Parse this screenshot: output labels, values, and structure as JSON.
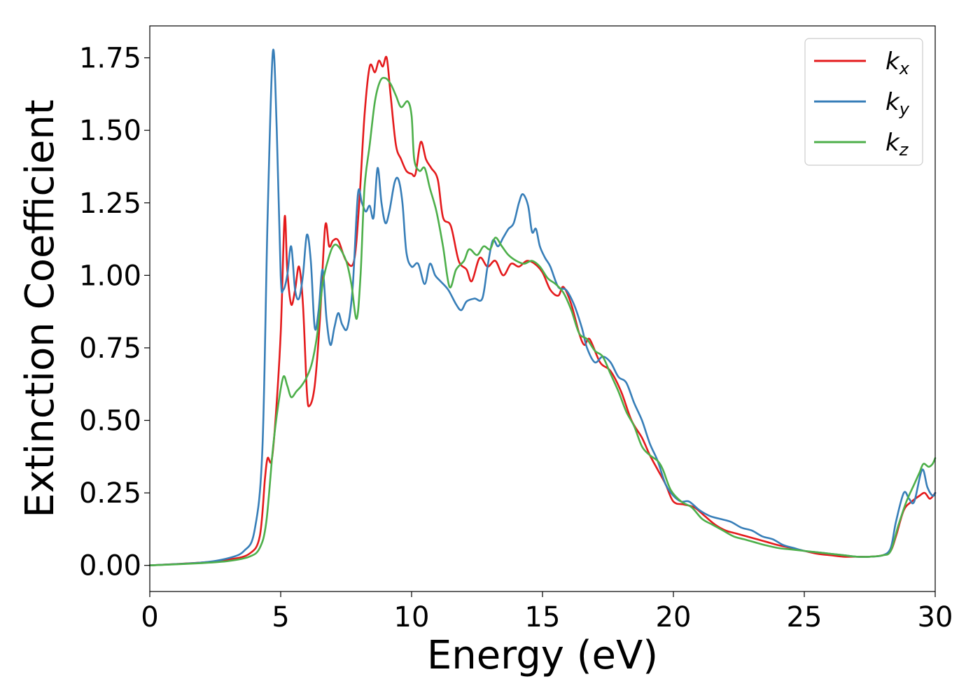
{
  "chart_data": {
    "type": "line",
    "xlabel": "Energy (eV)",
    "ylabel": "Extinction Coefficient",
    "xlim": [
      0,
      30
    ],
    "ylim": [
      -0.09,
      1.86
    ],
    "x_ticks": [
      "0",
      "5",
      "10",
      "15",
      "20",
      "25",
      "30"
    ],
    "y_ticks": [
      "0.00",
      "0.25",
      "0.50",
      "0.75",
      "1.00",
      "1.25",
      "1.50",
      "1.75"
    ],
    "x_tick_values": [
      0,
      5,
      10,
      15,
      20,
      25,
      30
    ],
    "y_tick_values": [
      0,
      0.25,
      0.5,
      0.75,
      1.0,
      1.25,
      1.5,
      1.75
    ],
    "grid": false,
    "legend_position": "top-right",
    "series": [
      {
        "name": "k",
        "subscript": "x",
        "color": "#e41a1c",
        "points": [
          [
            0,
            0
          ],
          [
            2,
            0.01
          ],
          [
            3,
            0.02
          ],
          [
            3.8,
            0.04
          ],
          [
            4.2,
            0.1
          ],
          [
            4.4,
            0.3
          ],
          [
            4.5,
            0.37
          ],
          [
            4.65,
            0.36
          ],
          [
            4.8,
            0.5
          ],
          [
            5.0,
            0.8
          ],
          [
            5.15,
            1.2
          ],
          [
            5.25,
            1.02
          ],
          [
            5.4,
            0.9
          ],
          [
            5.55,
            0.95
          ],
          [
            5.7,
            1.03
          ],
          [
            5.85,
            0.9
          ],
          [
            6.0,
            0.6
          ],
          [
            6.1,
            0.55
          ],
          [
            6.3,
            0.62
          ],
          [
            6.5,
            0.85
          ],
          [
            6.7,
            1.17
          ],
          [
            6.85,
            1.1
          ],
          [
            7.0,
            1.12
          ],
          [
            7.2,
            1.12
          ],
          [
            7.5,
            1.05
          ],
          [
            7.8,
            1.05
          ],
          [
            8.0,
            1.25
          ],
          [
            8.2,
            1.55
          ],
          [
            8.4,
            1.72
          ],
          [
            8.6,
            1.7
          ],
          [
            8.75,
            1.74
          ],
          [
            8.9,
            1.72
          ],
          [
            9.05,
            1.75
          ],
          [
            9.2,
            1.62
          ],
          [
            9.4,
            1.45
          ],
          [
            9.6,
            1.4
          ],
          [
            9.8,
            1.36
          ],
          [
            10.0,
            1.35
          ],
          [
            10.15,
            1.35
          ],
          [
            10.35,
            1.46
          ],
          [
            10.55,
            1.4
          ],
          [
            10.75,
            1.37
          ],
          [
            11.0,
            1.33
          ],
          [
            11.2,
            1.2
          ],
          [
            11.5,
            1.17
          ],
          [
            11.8,
            1.05
          ],
          [
            12.1,
            1.02
          ],
          [
            12.3,
            0.98
          ],
          [
            12.6,
            1.06
          ],
          [
            12.9,
            1.03
          ],
          [
            13.2,
            1.05
          ],
          [
            13.5,
            1.0
          ],
          [
            13.8,
            1.04
          ],
          [
            14.1,
            1.03
          ],
          [
            14.4,
            1.05
          ],
          [
            14.7,
            1.04
          ],
          [
            15.0,
            1.01
          ],
          [
            15.3,
            0.95
          ],
          [
            15.6,
            0.93
          ],
          [
            15.8,
            0.96
          ],
          [
            16.1,
            0.9
          ],
          [
            16.4,
            0.8
          ],
          [
            16.6,
            0.76
          ],
          [
            16.8,
            0.78
          ],
          [
            17.2,
            0.7
          ],
          [
            17.6,
            0.67
          ],
          [
            18.0,
            0.6
          ],
          [
            18.4,
            0.5
          ],
          [
            18.8,
            0.44
          ],
          [
            19.1,
            0.38
          ],
          [
            19.4,
            0.33
          ],
          [
            19.7,
            0.28
          ],
          [
            20.0,
            0.22
          ],
          [
            20.4,
            0.21
          ],
          [
            20.8,
            0.2
          ],
          [
            21.2,
            0.17
          ],
          [
            21.6,
            0.14
          ],
          [
            22.0,
            0.12
          ],
          [
            22.4,
            0.11
          ],
          [
            22.8,
            0.1
          ],
          [
            23.2,
            0.09
          ],
          [
            23.6,
            0.08
          ],
          [
            24.0,
            0.07
          ],
          [
            24.5,
            0.06
          ],
          [
            25.0,
            0.05
          ],
          [
            25.5,
            0.04
          ],
          [
            26.0,
            0.035
          ],
          [
            26.5,
            0.03
          ],
          [
            27.0,
            0.03
          ],
          [
            27.5,
            0.03
          ],
          [
            28.0,
            0.035
          ],
          [
            28.3,
            0.05
          ],
          [
            28.5,
            0.1
          ],
          [
            28.8,
            0.19
          ],
          [
            29.1,
            0.22
          ],
          [
            29.4,
            0.24
          ],
          [
            29.6,
            0.25
          ],
          [
            29.8,
            0.23
          ],
          [
            30.0,
            0.25
          ]
        ]
      },
      {
        "name": "k",
        "subscript": "y",
        "color": "#377eb8",
        "points": [
          [
            0,
            0
          ],
          [
            2,
            0.01
          ],
          [
            3,
            0.025
          ],
          [
            3.6,
            0.05
          ],
          [
            4.0,
            0.12
          ],
          [
            4.3,
            0.4
          ],
          [
            4.5,
            1.2
          ],
          [
            4.7,
            1.77
          ],
          [
            4.85,
            1.5
          ],
          [
            5.0,
            1.0
          ],
          [
            5.1,
            0.95
          ],
          [
            5.25,
            1.0
          ],
          [
            5.4,
            1.1
          ],
          [
            5.55,
            0.95
          ],
          [
            5.7,
            0.92
          ],
          [
            5.85,
            1.0
          ],
          [
            6.0,
            1.14
          ],
          [
            6.15,
            1.05
          ],
          [
            6.3,
            0.82
          ],
          [
            6.45,
            0.88
          ],
          [
            6.6,
            1.02
          ],
          [
            6.75,
            0.85
          ],
          [
            6.9,
            0.76
          ],
          [
            7.05,
            0.82
          ],
          [
            7.2,
            0.87
          ],
          [
            7.35,
            0.83
          ],
          [
            7.55,
            0.82
          ],
          [
            7.75,
            0.96
          ],
          [
            7.95,
            1.28
          ],
          [
            8.1,
            1.25
          ],
          [
            8.25,
            1.22
          ],
          [
            8.4,
            1.24
          ],
          [
            8.55,
            1.2
          ],
          [
            8.7,
            1.37
          ],
          [
            8.85,
            1.25
          ],
          [
            9.0,
            1.18
          ],
          [
            9.15,
            1.22
          ],
          [
            9.35,
            1.32
          ],
          [
            9.5,
            1.33
          ],
          [
            9.65,
            1.25
          ],
          [
            9.8,
            1.08
          ],
          [
            10.0,
            1.03
          ],
          [
            10.25,
            1.04
          ],
          [
            10.5,
            0.97
          ],
          [
            10.7,
            1.04
          ],
          [
            10.9,
            1.0
          ],
          [
            11.1,
            0.98
          ],
          [
            11.4,
            0.95
          ],
          [
            11.7,
            0.9
          ],
          [
            11.9,
            0.88
          ],
          [
            12.1,
            0.91
          ],
          [
            12.4,
            0.92
          ],
          [
            12.7,
            0.92
          ],
          [
            12.9,
            1.03
          ],
          [
            13.1,
            1.12
          ],
          [
            13.3,
            1.1
          ],
          [
            13.5,
            1.13
          ],
          [
            13.7,
            1.16
          ],
          [
            13.9,
            1.18
          ],
          [
            14.1,
            1.25
          ],
          [
            14.25,
            1.28
          ],
          [
            14.45,
            1.24
          ],
          [
            14.6,
            1.15
          ],
          [
            14.75,
            1.16
          ],
          [
            14.9,
            1.1
          ],
          [
            15.1,
            1.06
          ],
          [
            15.3,
            1.03
          ],
          [
            15.6,
            0.96
          ],
          [
            15.9,
            0.95
          ],
          [
            16.2,
            0.9
          ],
          [
            16.5,
            0.82
          ],
          [
            16.7,
            0.75
          ],
          [
            17.0,
            0.7
          ],
          [
            17.3,
            0.72
          ],
          [
            17.6,
            0.7
          ],
          [
            17.9,
            0.65
          ],
          [
            18.2,
            0.63
          ],
          [
            18.5,
            0.56
          ],
          [
            18.8,
            0.5
          ],
          [
            19.1,
            0.42
          ],
          [
            19.4,
            0.36
          ],
          [
            19.7,
            0.28
          ],
          [
            20.0,
            0.24
          ],
          [
            20.3,
            0.22
          ],
          [
            20.6,
            0.22
          ],
          [
            21.0,
            0.19
          ],
          [
            21.4,
            0.17
          ],
          [
            21.8,
            0.16
          ],
          [
            22.2,
            0.15
          ],
          [
            22.6,
            0.13
          ],
          [
            23.0,
            0.12
          ],
          [
            23.4,
            0.1
          ],
          [
            23.8,
            0.09
          ],
          [
            24.2,
            0.07
          ],
          [
            24.6,
            0.06
          ],
          [
            25.0,
            0.05
          ],
          [
            25.5,
            0.045
          ],
          [
            26.0,
            0.04
          ],
          [
            26.5,
            0.035
          ],
          [
            27.0,
            0.03
          ],
          [
            27.5,
            0.03
          ],
          [
            28.0,
            0.035
          ],
          [
            28.3,
            0.06
          ],
          [
            28.5,
            0.15
          ],
          [
            28.8,
            0.25
          ],
          [
            29.0,
            0.23
          ],
          [
            29.2,
            0.22
          ],
          [
            29.5,
            0.33
          ],
          [
            29.7,
            0.27
          ],
          [
            29.9,
            0.24
          ],
          [
            30.0,
            0.25
          ]
        ]
      },
      {
        "name": "k",
        "subscript": "z",
        "color": "#4daf4a",
        "points": [
          [
            0,
            0
          ],
          [
            2,
            0.008
          ],
          [
            3,
            0.015
          ],
          [
            3.8,
            0.03
          ],
          [
            4.2,
            0.06
          ],
          [
            4.45,
            0.15
          ],
          [
            4.7,
            0.4
          ],
          [
            4.9,
            0.55
          ],
          [
            5.1,
            0.65
          ],
          [
            5.25,
            0.62
          ],
          [
            5.4,
            0.58
          ],
          [
            5.6,
            0.6
          ],
          [
            5.8,
            0.62
          ],
          [
            6.0,
            0.65
          ],
          [
            6.2,
            0.7
          ],
          [
            6.4,
            0.8
          ],
          [
            6.6,
            0.97
          ],
          [
            6.8,
            1.05
          ],
          [
            7.0,
            1.1
          ],
          [
            7.2,
            1.1
          ],
          [
            7.5,
            1.05
          ],
          [
            7.7,
            0.97
          ],
          [
            7.9,
            0.85
          ],
          [
            8.05,
            1.0
          ],
          [
            8.2,
            1.3
          ],
          [
            8.4,
            1.45
          ],
          [
            8.6,
            1.6
          ],
          [
            8.8,
            1.67
          ],
          [
            9.0,
            1.68
          ],
          [
            9.2,
            1.66
          ],
          [
            9.4,
            1.62
          ],
          [
            9.6,
            1.58
          ],
          [
            9.85,
            1.6
          ],
          [
            10.0,
            1.55
          ],
          [
            10.1,
            1.4
          ],
          [
            10.3,
            1.36
          ],
          [
            10.5,
            1.37
          ],
          [
            10.7,
            1.3
          ],
          [
            10.95,
            1.22
          ],
          [
            11.2,
            1.1
          ],
          [
            11.45,
            0.96
          ],
          [
            11.7,
            1.02
          ],
          [
            12.0,
            1.05
          ],
          [
            12.2,
            1.09
          ],
          [
            12.5,
            1.07
          ],
          [
            12.75,
            1.1
          ],
          [
            13.0,
            1.09
          ],
          [
            13.2,
            1.13
          ],
          [
            13.45,
            1.1
          ],
          [
            13.7,
            1.07
          ],
          [
            14.0,
            1.05
          ],
          [
            14.3,
            1.04
          ],
          [
            14.6,
            1.05
          ],
          [
            14.9,
            1.03
          ],
          [
            15.2,
            0.99
          ],
          [
            15.5,
            0.97
          ],
          [
            15.8,
            0.94
          ],
          [
            16.1,
            0.88
          ],
          [
            16.4,
            0.8
          ],
          [
            16.7,
            0.78
          ],
          [
            17.0,
            0.74
          ],
          [
            17.3,
            0.72
          ],
          [
            17.6,
            0.66
          ],
          [
            17.9,
            0.6
          ],
          [
            18.2,
            0.53
          ],
          [
            18.5,
            0.48
          ],
          [
            18.8,
            0.41
          ],
          [
            19.1,
            0.38
          ],
          [
            19.4,
            0.36
          ],
          [
            19.6,
            0.33
          ],
          [
            19.9,
            0.26
          ],
          [
            20.3,
            0.22
          ],
          [
            20.7,
            0.2
          ],
          [
            21.1,
            0.16
          ],
          [
            21.5,
            0.14
          ],
          [
            21.9,
            0.12
          ],
          [
            22.3,
            0.1
          ],
          [
            22.7,
            0.09
          ],
          [
            23.1,
            0.08
          ],
          [
            23.5,
            0.07
          ],
          [
            24.0,
            0.06
          ],
          [
            24.5,
            0.055
          ],
          [
            25.0,
            0.05
          ],
          [
            25.5,
            0.045
          ],
          [
            26.0,
            0.04
          ],
          [
            26.5,
            0.035
          ],
          [
            27.0,
            0.03
          ],
          [
            27.5,
            0.03
          ],
          [
            28.0,
            0.035
          ],
          [
            28.3,
            0.05
          ],
          [
            28.6,
            0.14
          ],
          [
            28.9,
            0.22
          ],
          [
            29.2,
            0.28
          ],
          [
            29.4,
            0.32
          ],
          [
            29.55,
            0.35
          ],
          [
            29.75,
            0.34
          ],
          [
            29.9,
            0.35
          ],
          [
            30.0,
            0.37
          ]
        ]
      }
    ]
  }
}
